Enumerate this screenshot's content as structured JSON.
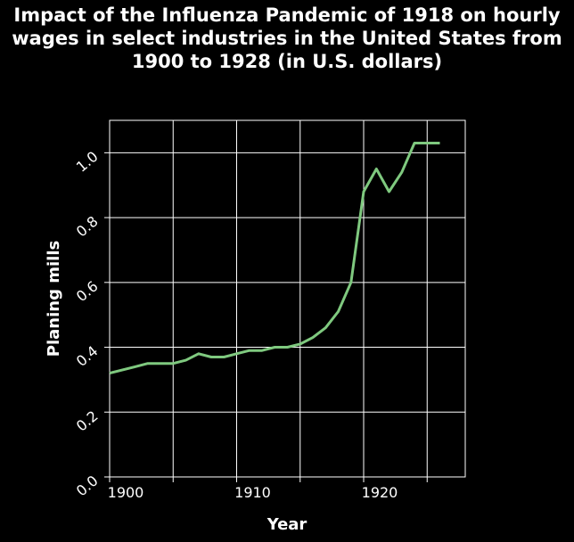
{
  "chart_data": {
    "type": "line",
    "title": "Impact of the Influenza Pandemic of 1918 on hourly wages in select industries in the United States from 1900 to 1928 (in U.S. dollars)",
    "xlabel": "Year",
    "ylabel": "Planing mills",
    "xlim": [
      1900,
      1928
    ],
    "ylim": [
      0.0,
      1.1
    ],
    "x_ticks": [
      1900,
      1910,
      1920
    ],
    "x_tick_labels": [
      "1900",
      "1910",
      "1920"
    ],
    "y_ticks": [
      0.0,
      0.2,
      0.4,
      0.6,
      0.8,
      1.0
    ],
    "y_tick_labels": [
      "0.0",
      "0.2",
      "0.4",
      "0.6",
      "0.8",
      "1.0"
    ],
    "grid": true,
    "line_color": "#7fc97f",
    "series": [
      {
        "x": [
          1900,
          1902,
          1903,
          1905,
          1906,
          1907,
          1908,
          1909,
          1910,
          1911,
          1912,
          1913,
          1914,
          1915,
          1916,
          1917,
          1918,
          1919,
          1920,
          1921,
          1922,
          1923,
          1924,
          1925,
          1926
        ],
        "values": [
          0.32,
          0.34,
          0.35,
          0.35,
          0.36,
          0.38,
          0.37,
          0.37,
          0.38,
          0.39,
          0.39,
          0.4,
          0.4,
          0.41,
          0.43,
          0.46,
          0.51,
          0.6,
          0.88,
          0.95,
          0.88,
          0.94,
          1.03,
          1.03,
          1.03
        ]
      }
    ]
  }
}
